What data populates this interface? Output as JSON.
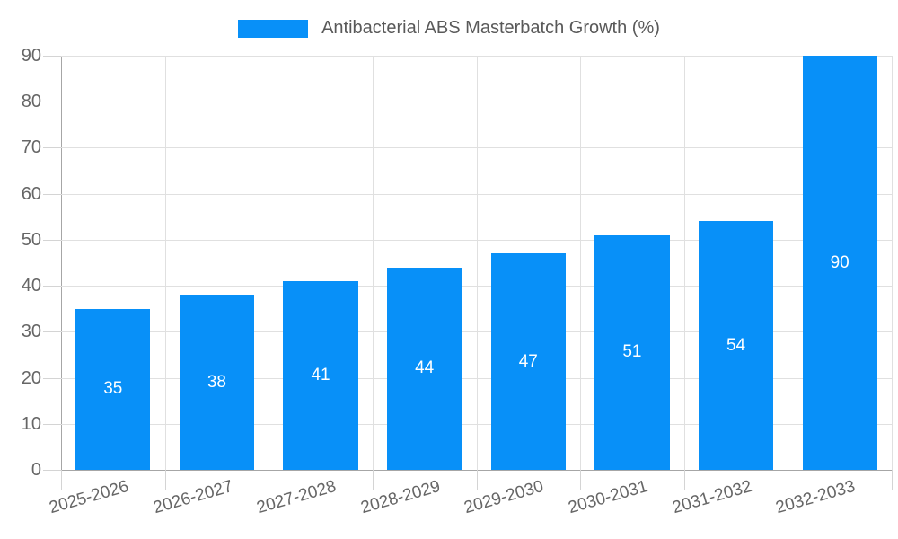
{
  "chart_data": {
    "type": "bar",
    "title": "Antibacterial ABS Masterbatch Growth (%)",
    "categories": [
      "2025-2026",
      "2026-2027",
      "2027-2028",
      "2028-2029",
      "2029-2030",
      "2030-2031",
      "2031-2032",
      "2032-2033"
    ],
    "values": [
      35,
      38,
      41,
      44,
      47,
      51,
      54,
      90
    ],
    "value_labels": [
      "35",
      "38",
      "41",
      "44",
      "47",
      "51",
      "54",
      "90"
    ],
    "xlabel": "",
    "ylabel": "",
    "ylim": [
      0,
      90
    ],
    "ytick_step": 10,
    "yticks": [
      "0",
      "10",
      "20",
      "30",
      "40",
      "50",
      "60",
      "70",
      "80",
      "90"
    ],
    "grid": "on",
    "legend_position": "top-center",
    "style": {
      "bar_color": "#0890f8",
      "bar_label_color": "#ffffff",
      "grid_color": "#e0e0e0",
      "axis_line_color": "#a6a6a6",
      "tick_mark_color": "#d4d4d4",
      "tick_label_color": "#666666",
      "title_color": "#595959",
      "background_color": "#ffffff"
    }
  }
}
